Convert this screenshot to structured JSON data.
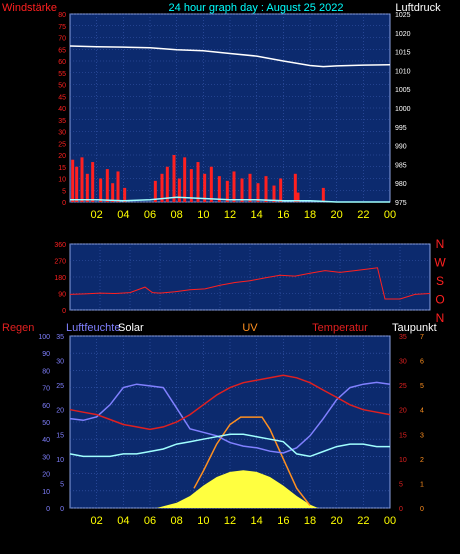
{
  "colors": {
    "background": "#000000",
    "panel": "#0c2a6e",
    "grid": "#3a5ab0",
    "frame": "#8aa0e0",
    "wind": "#ff2020",
    "gust": "#ffffff",
    "pressure": "#ffffff",
    "direction": "#ff2020",
    "tick_yellow": "#ffff00",
    "title": "#00ffff",
    "humidity": "#8080ff",
    "solar": "#ffff40",
    "uv": "#ff9020",
    "temperature": "#e02020",
    "dewpoint": "#a0ffff"
  },
  "chart_data": [
    {
      "type": "area",
      "title": "24 hour graph day : August 25 2022",
      "ylabel_left": "Windstärke",
      "ylabel_right": "Luftdruck",
      "x_ticks": [
        "02",
        "04",
        "06",
        "08",
        "10",
        "12",
        "14",
        "16",
        "18",
        "20",
        "22",
        "00"
      ],
      "x_range": [
        0,
        24
      ],
      "y_left_ticks": [
        "80",
        "75",
        "70",
        "65",
        "60",
        "55",
        "50",
        "45",
        "40",
        "35",
        "30",
        "25",
        "20",
        "15",
        "10",
        "5",
        "0"
      ],
      "y_left_range": [
        0,
        80
      ],
      "y_right_ticks": [
        "1025",
        "1020",
        "1015",
        "1010",
        "1005",
        "1000",
        "995",
        "990",
        "985",
        "980",
        "975"
      ],
      "y_right_range": [
        975,
        1025
      ],
      "grid": true,
      "series": [
        {
          "name": "Windstärke",
          "kind": "bars",
          "x": [
            0.2,
            0.5,
            0.9,
            1.3,
            1.7,
            2.3,
            2.8,
            3.2,
            3.6,
            4.1,
            6.4,
            6.9,
            7.3,
            7.8,
            8.2,
            8.6,
            9.1,
            9.6,
            10.1,
            10.6,
            11.2,
            11.8,
            12.3,
            12.9,
            13.5,
            14.1,
            14.7,
            15.3,
            15.8,
            16.9,
            17.1,
            19.0
          ],
          "y": [
            18,
            15,
            19,
            12,
            17,
            10,
            14,
            8,
            13,
            6,
            9,
            12,
            15,
            20,
            10,
            19,
            14,
            17,
            12,
            15,
            11,
            9,
            13,
            10,
            12,
            8,
            11,
            7,
            10,
            12,
            4,
            6
          ]
        },
        {
          "name": "Böen",
          "kind": "line",
          "x": [
            0,
            2,
            4,
            6,
            8,
            10,
            12,
            14,
            16,
            18,
            20,
            24
          ],
          "y": [
            1,
            1,
            0.5,
            1,
            2,
            1.5,
            1,
            1,
            0.5,
            0.5,
            0,
            0
          ]
        },
        {
          "name": "Luftdruck",
          "kind": "line",
          "axis": "right",
          "x": [
            0,
            2,
            4,
            6,
            8,
            10,
            12,
            14,
            16,
            18,
            19,
            20,
            22,
            24
          ],
          "y": [
            1016.5,
            1016.3,
            1016.2,
            1016.0,
            1015.5,
            1015.2,
            1014.5,
            1013.8,
            1012.5,
            1011.3,
            1011.0,
            1011.2,
            1011.4,
            1011.5
          ]
        }
      ]
    },
    {
      "type": "line",
      "ylabel_right": [
        "N",
        "W",
        "S",
        "O",
        "N"
      ],
      "y_left_ticks": [
        "360",
        "270",
        "180",
        "90",
        "0"
      ],
      "y_range": [
        0,
        360
      ],
      "x_range": [
        0,
        24
      ],
      "grid": true,
      "series": [
        {
          "name": "Windrichtung",
          "x": [
            0,
            1,
            2,
            3,
            4,
            5,
            5.5,
            6,
            7,
            8,
            9,
            10,
            11,
            12,
            13,
            14,
            15,
            16,
            17,
            18,
            19,
            20,
            20.5,
            21,
            22,
            23,
            24
          ],
          "y": [
            85,
            88,
            92,
            90,
            95,
            125,
            95,
            92,
            100,
            110,
            115,
            135,
            150,
            160,
            175,
            190,
            185,
            200,
            215,
            205,
            215,
            225,
            230,
            60,
            60,
            85,
            90
          ]
        }
      ]
    },
    {
      "type": "line",
      "labels": [
        "Regen",
        "Luftfeuchte",
        "Solar",
        "UV",
        "Temperatur",
        "Taupunkt"
      ],
      "y_regen_ticks": [
        "100",
        "90",
        "80",
        "70",
        "60",
        "50",
        "40",
        "30",
        "20",
        "10",
        "0"
      ],
      "y_hum_ticks": [
        "35",
        "30",
        "25",
        "20",
        "15",
        "10",
        "5",
        "0"
      ],
      "y_temp_ticks": [
        "35",
        "30",
        "25",
        "20",
        "15",
        "10",
        "5",
        "0"
      ],
      "y_uv_ticks": [
        "7",
        "6",
        "5",
        "4",
        "3",
        "2",
        "1",
        "0"
      ],
      "x_ticks": [
        "02",
        "04",
        "06",
        "08",
        "10",
        "12",
        "14",
        "16",
        "18",
        "20",
        "22",
        "00"
      ],
      "x_range": [
        0,
        24
      ],
      "grid": true,
      "series": [
        {
          "name": "Luftfeuchte",
          "axis": "0-100",
          "x": [
            0,
            1,
            2,
            3,
            4,
            5,
            6,
            7,
            8,
            9,
            10,
            11,
            12,
            13,
            14,
            15,
            16,
            17,
            18,
            19,
            20,
            21,
            22,
            23,
            24
          ],
          "y": [
            52,
            51,
            53,
            60,
            70,
            72,
            71,
            70,
            58,
            46,
            44,
            42,
            38,
            36,
            35,
            33,
            32,
            35,
            42,
            52,
            63,
            70,
            72,
            73,
            72
          ]
        },
        {
          "name": "Temperatur",
          "axis": "temp",
          "x": [
            0,
            1,
            2,
            3,
            4,
            5,
            6,
            7,
            8,
            9,
            10,
            11,
            12,
            13,
            14,
            15,
            16,
            17,
            18,
            19,
            20,
            21,
            22,
            23,
            24
          ],
          "y": [
            20,
            19.5,
            19,
            18,
            17,
            16.5,
            16,
            16.5,
            17.5,
            19,
            21,
            23,
            24.5,
            25.5,
            26,
            26.5,
            27,
            26.5,
            25.5,
            24,
            22.5,
            21,
            20,
            19.5,
            19
          ]
        },
        {
          "name": "Taupunkt",
          "axis": "temp",
          "x": [
            0,
            1,
            2,
            3,
            4,
            5,
            6,
            7,
            8,
            9,
            10,
            11,
            12,
            13,
            14,
            15,
            16,
            17,
            18,
            19,
            20,
            21,
            22,
            23,
            24
          ],
          "y": [
            11,
            10.5,
            10.5,
            10.5,
            11,
            11,
            11.5,
            12,
            13,
            13.5,
            14,
            14.5,
            15,
            15,
            14.5,
            14,
            13.5,
            11,
            10.5,
            11.5,
            12.5,
            13,
            13,
            12.5,
            12.5
          ]
        },
        {
          "name": "UV",
          "axis": "uv",
          "x": [
            9.3,
            10,
            11,
            12,
            12.8,
            13,
            14,
            14.4,
            15,
            16,
            17,
            18
          ],
          "y": [
            0.8,
            1.5,
            2.6,
            3.4,
            3.7,
            3.7,
            3.7,
            3.7,
            3.2,
            2,
            0.8,
            0.1
          ]
        },
        {
          "name": "Solar",
          "axis": "0-100",
          "x": [
            6.5,
            7,
            8,
            9,
            10,
            11,
            12,
            13,
            14,
            15,
            16,
            17,
            18,
            18.6
          ],
          "y": [
            0,
            1,
            3,
            7,
            13,
            18,
            21,
            22,
            21,
            18,
            13,
            7,
            2,
            0
          ]
        }
      ]
    }
  ]
}
